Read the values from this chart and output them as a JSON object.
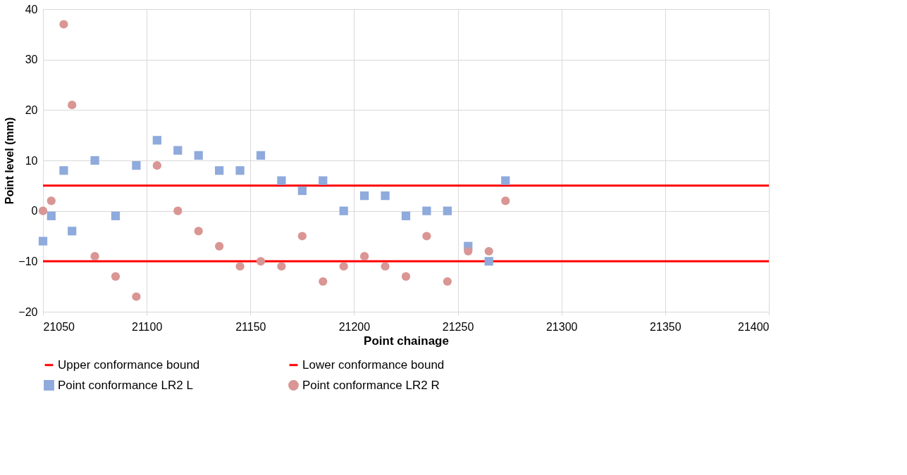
{
  "chart_data": {
    "type": "scatter",
    "xlabel": "Point chainage",
    "ylabel": "Point level (mm)",
    "xlim": [
      21050,
      21400
    ],
    "xticks": [
      21050,
      21100,
      21150,
      21200,
      21250,
      21300,
      21350,
      21400
    ],
    "ylim": [
      -20,
      40
    ],
    "yticks": [
      -20,
      -10,
      0,
      10,
      20,
      30,
      40
    ],
    "grid": true,
    "legend": "bottom",
    "ref_lines": [
      {
        "axis": "y",
        "value": 5,
        "label": "Upper conformance bound",
        "color": "#ff0000",
        "line_style": "solid"
      },
      {
        "axis": "y",
        "value": -10,
        "label": "Lower conformance bound",
        "color": "#ff0000",
        "line_style": "solid"
      }
    ],
    "x": [
      21050,
      21054,
      21060,
      21064,
      21075,
      21085,
      21095,
      21105,
      21115,
      21125,
      21135,
      21145,
      21155,
      21165,
      21175,
      21185,
      21195,
      21205,
      21215,
      21225,
      21235,
      21245,
      21255,
      21265,
      21273
    ],
    "series": [
      {
        "name": "Point conformance LR2 L",
        "color": "#8faadc",
        "marker": "square",
        "values": [
          -6,
          -1,
          8,
          -4,
          10,
          -1,
          9,
          14,
          12,
          11,
          8,
          8,
          11,
          6,
          4,
          6,
          0,
          3,
          3,
          -1,
          0,
          0,
          -7,
          -10,
          6
        ]
      },
      {
        "name": "Point conformance LR2 R",
        "color": "#d99694",
        "marker": "circle",
        "values": [
          0,
          2,
          37,
          21,
          -9,
          -13,
          -17,
          9,
          0,
          -4,
          -7,
          -11,
          -10,
          -11,
          -5,
          -14,
          -11,
          -9,
          -11,
          -13,
          -5,
          -14,
          -8,
          -8,
          2
        ]
      }
    ]
  }
}
